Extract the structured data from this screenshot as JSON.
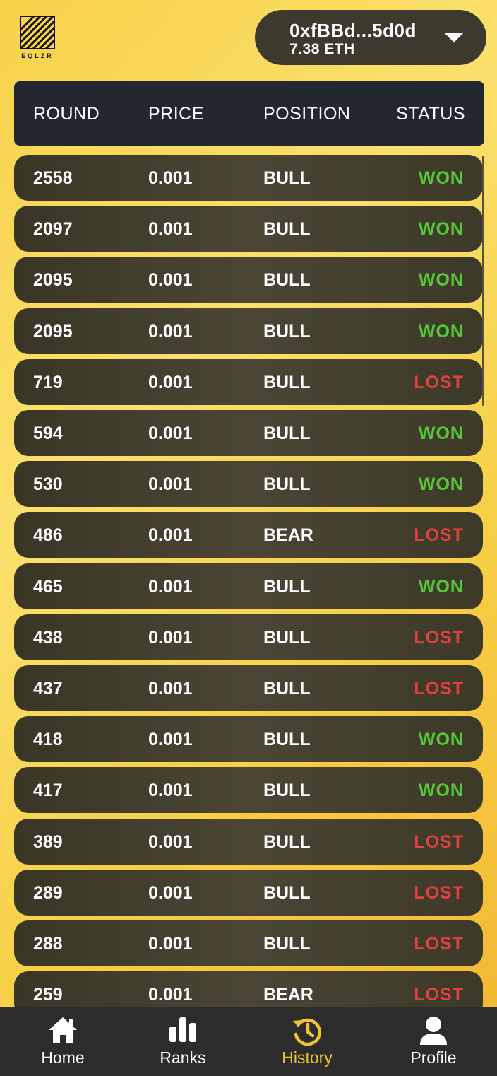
{
  "logo": {
    "text": "EQLZR"
  },
  "wallet": {
    "address": "0xfBBd...5d0d",
    "balance": "7.38 ETH"
  },
  "table": {
    "headers": [
      "ROUND",
      "PRICE",
      "POSITION",
      "STATUS"
    ],
    "rows": [
      {
        "round": "2558",
        "price": "0.001",
        "position": "BULL",
        "status": "WON"
      },
      {
        "round": "2097",
        "price": "0.001",
        "position": "BULL",
        "status": "WON"
      },
      {
        "round": "2095",
        "price": "0.001",
        "position": "BULL",
        "status": "WON"
      },
      {
        "round": "2095",
        "price": "0.001",
        "position": "BULL",
        "status": "WON"
      },
      {
        "round": "719",
        "price": "0.001",
        "position": "BULL",
        "status": "LOST"
      },
      {
        "round": "594",
        "price": "0.001",
        "position": "BULL",
        "status": "WON"
      },
      {
        "round": "530",
        "price": "0.001",
        "position": "BULL",
        "status": "WON"
      },
      {
        "round": "486",
        "price": "0.001",
        "position": "BEAR",
        "status": "LOST"
      },
      {
        "round": "465",
        "price": "0.001",
        "position": "BULL",
        "status": "WON"
      },
      {
        "round": "438",
        "price": "0.001",
        "position": "BULL",
        "status": "LOST"
      },
      {
        "round": "437",
        "price": "0.001",
        "position": "BULL",
        "status": "LOST"
      },
      {
        "round": "418",
        "price": "0.001",
        "position": "BULL",
        "status": "WON"
      },
      {
        "round": "417",
        "price": "0.001",
        "position": "BULL",
        "status": "WON"
      },
      {
        "round": "389",
        "price": "0.001",
        "position": "BULL",
        "status": "LOST"
      },
      {
        "round": "289",
        "price": "0.001",
        "position": "BULL",
        "status": "LOST"
      },
      {
        "round": "288",
        "price": "0.001",
        "position": "BULL",
        "status": "LOST"
      },
      {
        "round": "259",
        "price": "0.001",
        "position": "BEAR",
        "status": "LOST"
      }
    ]
  },
  "colors": {
    "won": "#55c935",
    "lost": "#e2403d",
    "active_tab": "#f2c230"
  },
  "nav": {
    "items": [
      {
        "label": "Home",
        "icon": "home-icon"
      },
      {
        "label": "Ranks",
        "icon": "bar-chart-icon"
      },
      {
        "label": "History",
        "icon": "history-icon"
      },
      {
        "label": "Profile",
        "icon": "person-icon"
      }
    ],
    "active": "History"
  }
}
